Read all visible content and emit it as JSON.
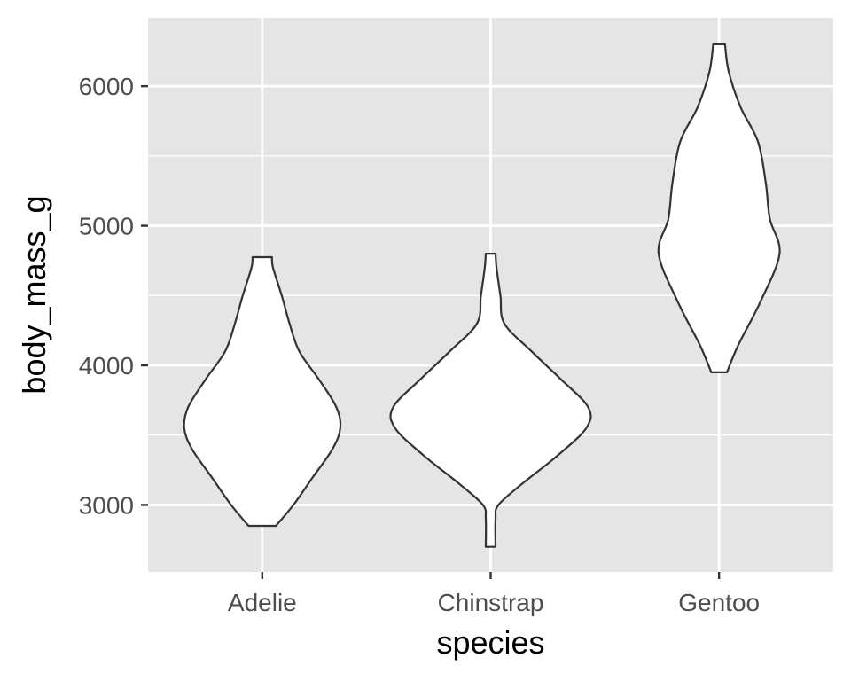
{
  "chart_data": {
    "type": "violin",
    "title": "",
    "xlabel": "species",
    "ylabel": "body_mass_g",
    "categories": [
      "Adelie",
      "Chinstrap",
      "Gentoo"
    ],
    "ylim": [
      2520,
      6490
    ],
    "yticks": [
      3000,
      4000,
      5000,
      6000
    ],
    "ytick_labels": [
      "3000",
      "4000",
      "5000",
      "6000"
    ],
    "grid": true,
    "legend": "none",
    "colors": {
      "panel_background": "#e5e5e5",
      "grid_line": "#ffffff",
      "violin_fill": "#ffffff",
      "violin_outline": "#333333",
      "tick_text": "#4d4d4d"
    },
    "series": [
      {
        "category": "Adelie",
        "min": 2850,
        "max": 4775,
        "relative_width_profile": [
          {
            "y": 2850,
            "w": 0.14
          },
          {
            "y": 3000,
            "w": 0.32
          },
          {
            "y": 3200,
            "w": 0.52
          },
          {
            "y": 3400,
            "w": 0.72
          },
          {
            "y": 3550,
            "w": 0.8
          },
          {
            "y": 3700,
            "w": 0.76
          },
          {
            "y": 3900,
            "w": 0.58
          },
          {
            "y": 4100,
            "w": 0.38
          },
          {
            "y": 4300,
            "w": 0.28
          },
          {
            "y": 4500,
            "w": 0.2
          },
          {
            "y": 4700,
            "w": 0.11
          },
          {
            "y": 4775,
            "w": 0.1
          }
        ]
      },
      {
        "category": "Chinstrap",
        "min": 2700,
        "max": 4800,
        "relative_width_profile": [
          {
            "y": 2700,
            "w": 0.05
          },
          {
            "y": 2900,
            "w": 0.05
          },
          {
            "y": 3000,
            "w": 0.08
          },
          {
            "y": 3150,
            "w": 0.32
          },
          {
            "y": 3350,
            "w": 0.68
          },
          {
            "y": 3550,
            "w": 0.98
          },
          {
            "y": 3700,
            "w": 1.0
          },
          {
            "y": 3900,
            "w": 0.72
          },
          {
            "y": 4100,
            "w": 0.42
          },
          {
            "y": 4300,
            "w": 0.14
          },
          {
            "y": 4500,
            "w": 0.1
          },
          {
            "y": 4700,
            "w": 0.06
          },
          {
            "y": 4800,
            "w": 0.05
          }
        ]
      },
      {
        "category": "Gentoo",
        "min": 3950,
        "max": 6300,
        "relative_width_profile": [
          {
            "y": 3950,
            "w": 0.08
          },
          {
            "y": 4150,
            "w": 0.2
          },
          {
            "y": 4450,
            "w": 0.42
          },
          {
            "y": 4800,
            "w": 0.62
          },
          {
            "y": 5050,
            "w": 0.52
          },
          {
            "y": 5300,
            "w": 0.48
          },
          {
            "y": 5600,
            "w": 0.4
          },
          {
            "y": 5850,
            "w": 0.22
          },
          {
            "y": 6100,
            "w": 0.1
          },
          {
            "y": 6300,
            "w": 0.06
          }
        ]
      }
    ]
  }
}
